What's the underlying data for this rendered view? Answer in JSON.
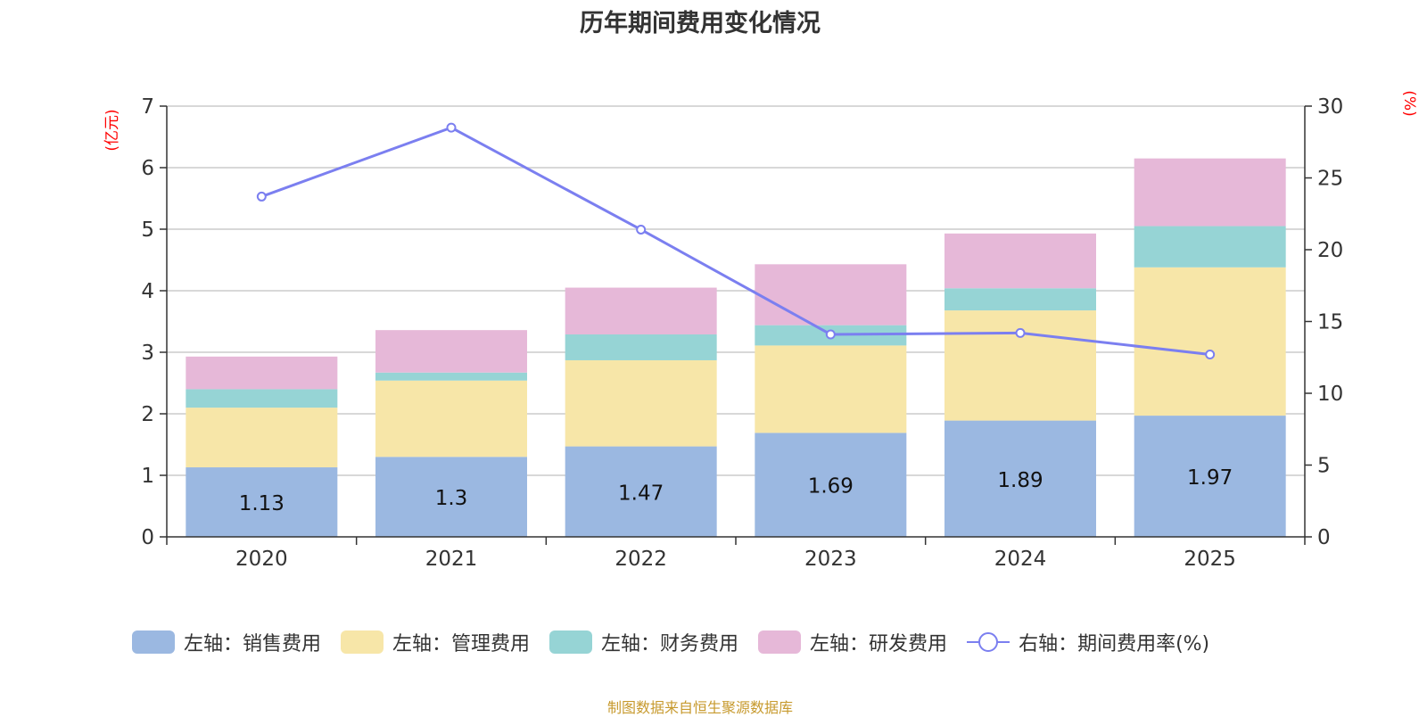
{
  "chart_data": {
    "type": "bar",
    "title": "历年期间费用变化情况",
    "categories": [
      "2020",
      "2021",
      "2022",
      "2023",
      "2024",
      "2025"
    ],
    "y_left": {
      "label": "(亿元)",
      "range": [
        0,
        7
      ],
      "ticks": [
        "0",
        "1",
        "2",
        "3",
        "4",
        "5",
        "6",
        "7"
      ]
    },
    "y_right": {
      "label": "(%)",
      "range": [
        0,
        30
      ],
      "ticks": [
        "0",
        "5",
        "10",
        "15",
        "20",
        "25",
        "30"
      ]
    },
    "series": [
      {
        "name": "左轴：销售费用",
        "type": "stacked-bar",
        "axis": "left",
        "color": "#9bb8e1",
        "values": [
          1.13,
          1.3,
          1.47,
          1.69,
          1.89,
          1.97
        ],
        "labels": [
          "1.13",
          "1.3",
          "1.47",
          "1.69",
          "1.89",
          "1.97"
        ]
      },
      {
        "name": "左轴：管理费用",
        "type": "stacked-bar",
        "axis": "left",
        "color": "#f7e6a8",
        "values": [
          0.97,
          1.24,
          1.4,
          1.42,
          1.79,
          2.41
        ]
      },
      {
        "name": "左轴：财务费用",
        "type": "stacked-bar",
        "axis": "left",
        "color": "#96d4d5",
        "values": [
          0.3,
          0.13,
          0.42,
          0.33,
          0.36,
          0.67
        ]
      },
      {
        "name": "左轴：研发费用",
        "type": "stacked-bar",
        "axis": "left",
        "color": "#e6b8d8",
        "values": [
          0.53,
          0.69,
          0.76,
          0.99,
          0.89,
          1.1
        ]
      },
      {
        "name": "右轴：期间费用率(%)",
        "type": "line",
        "axis": "right",
        "color": "#7b7ff0",
        "values": [
          23.7,
          28.5,
          21.4,
          14.1,
          14.2,
          12.7
        ]
      }
    ],
    "grid": true,
    "legend_position": "bottom"
  },
  "footer": {
    "source": "制图数据来自恒生聚源数据库"
  }
}
